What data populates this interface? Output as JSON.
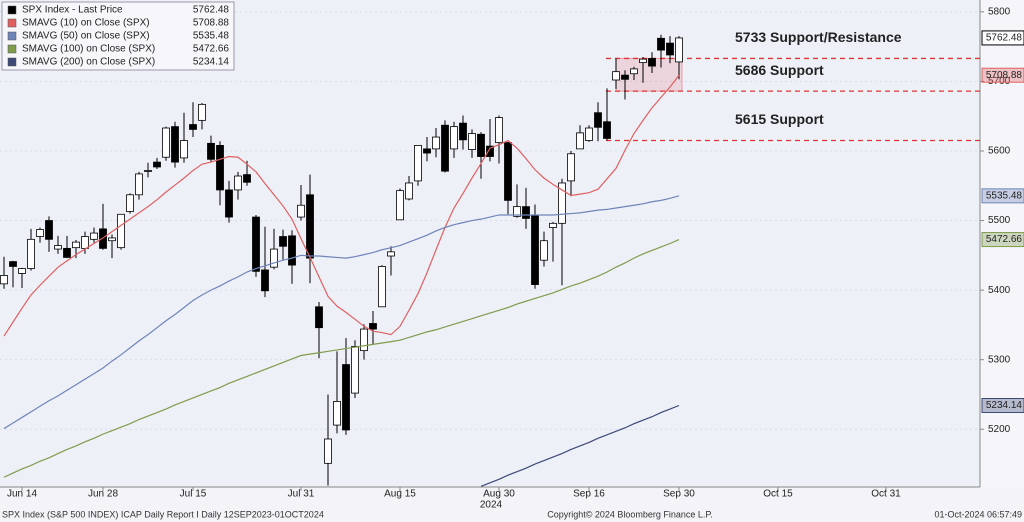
{
  "chart_data": {
    "type": "candlestick",
    "ylim": [
      5117,
      5817
    ],
    "yticks": [
      5200,
      5300,
      5400,
      5500,
      5600,
      5700,
      5800
    ],
    "grid": true,
    "categories": [
      null,
      null,
      "Jun 14",
      null,
      null,
      null,
      null,
      null,
      null,
      null,
      null,
      "Jun 28",
      null,
      null,
      null,
      null,
      null,
      null,
      null,
      null,
      null,
      "Jul 15",
      null,
      null,
      null,
      null,
      null,
      null,
      null,
      null,
      null,
      null,
      null,
      "Jul 31",
      null,
      null,
      null,
      null,
      null,
      null,
      null,
      null,
      null,
      null,
      "Aug 15",
      null,
      null,
      null,
      null,
      null,
      null,
      null,
      null,
      null,
      null,
      "Aug 30",
      null,
      null,
      null,
      null,
      null,
      null,
      null,
      null,
      null,
      "Sep 16",
      null,
      null,
      null,
      null,
      null,
      null,
      null,
      null,
      null,
      "Sep 30",
      null,
      null,
      null,
      null,
      null,
      null,
      null,
      null,
      null,
      null,
      "Oct 15",
      null,
      null,
      null,
      null,
      null,
      null,
      null,
      null,
      null,
      null,
      null,
      "Oct 31",
      null,
      null,
      null,
      null,
      null,
      null,
      null,
      null,
      null,
      null
    ],
    "year_label": "2024",
    "ohlc": {
      "name": "SPX Index - Last Price",
      "color": "#000000",
      "open": [
        5409,
        5441,
        5424,
        5431,
        5477,
        5500,
        5459,
        5460,
        5461,
        5460,
        5473,
        5488,
        5471,
        5461,
        5513,
        5537,
        5572,
        5584,
        5591,
        5635,
        5590,
        5638,
        5644,
        5611,
        5608,
        5544,
        5544,
        5566,
        5505,
        5429,
        5433,
        5477,
        5478,
        5505,
        5537,
        5376,
        5151,
        5206,
        5293,
        5252,
        5313,
        5352,
        5376,
        5449,
        5501,
        5531,
        5557,
        5603,
        5603,
        5637,
        5603,
        5640,
        5602,
        5624,
        5607,
        5612,
        5612,
        5506,
        5520,
        5507,
        5443,
        5490,
        5496,
        5557,
        5603,
        5615,
        5655,
        5642,
        5702,
        5709,
        5711,
        5727,
        5733,
        5762,
        5755,
        5728,
        null,
        null,
        null,
        null,
        null,
        null,
        null,
        null,
        null,
        null,
        null,
        null,
        null,
        null,
        null,
        null,
        null,
        null,
        null,
        null,
        null,
        null,
        null,
        null,
        null,
        null,
        null,
        null,
        null,
        null,
        null,
        null,
        null
      ],
      "high": [
        5448,
        5442,
        5432,
        5488,
        5490,
        5506,
        5478,
        5478,
        5472,
        5484,
        5490,
        5524,
        5480,
        5509,
        5539,
        5570,
        5583,
        5590,
        5635,
        5642,
        5655,
        5670,
        5669,
        5622,
        5614,
        5557,
        5570,
        5586,
        5508,
        5491,
        5488,
        5487,
        5486,
        5551,
        5566,
        5383,
        5250,
        5312,
        5331,
        5328,
        5351,
        5370,
        5436,
        5463,
        5546,
        5564,
        5608,
        5620,
        5633,
        5644,
        5642,
        5651,
        5631,
        5627,
        5646,
        5651,
        5613,
        5552,
        5547,
        5523,
        5484,
        5498,
        5560,
        5600,
        5637,
        5637,
        5670,
        5690,
        5733,
        5716,
        5721,
        5735,
        5742,
        5767,
        5765,
        5765,
        null,
        null,
        null,
        null,
        null,
        null,
        null,
        null,
        null,
        null,
        null,
        null,
        null,
        null,
        null,
        null,
        null,
        null,
        null,
        null,
        null,
        null,
        null,
        null,
        null,
        null,
        null,
        null,
        null,
        null,
        null,
        null,
        null
      ],
      "low": [
        5402,
        5404,
        5403,
        5428,
        5468,
        5455,
        5452,
        5446,
        5446,
        5452,
        5468,
        5458,
        5446,
        5458,
        5510,
        5530,
        5562,
        5574,
        5586,
        5576,
        5583,
        5620,
        5631,
        5584,
        5522,
        5497,
        5530,
        5550,
        5419,
        5390,
        5430,
        5444,
        5409,
        5500,
        5410,
        5302,
        5119,
        5194,
        5192,
        5245,
        5300,
        5322,
        5376,
        5421,
        5501,
        5529,
        5550,
        5585,
        5591,
        5569,
        5590,
        5602,
        5590,
        5560,
        5585,
        5582,
        5509,
        5504,
        5488,
        5402,
        5434,
        5441,
        5407,
        5535,
        5603,
        5613,
        5614,
        5615,
        5689,
        5674,
        5702,
        5698,
        5712,
        5720,
        5726,
        5703,
        null,
        null,
        null,
        null,
        null,
        null,
        null,
        null,
        null,
        null,
        null,
        null,
        null,
        null,
        null,
        null,
        null,
        null,
        null,
        null,
        null,
        null,
        null,
        null,
        null,
        null,
        null,
        null,
        null,
        null,
        null,
        null,
        null
      ],
      "close": [
        5421,
        5434,
        5431,
        5473,
        5487,
        5473,
        5464,
        5447,
        5469,
        5477,
        5482,
        5460,
        5475,
        5509,
        5537,
        5567,
        5572,
        5577,
        5633,
        5584,
        5615,
        5631,
        5667,
        5588,
        5544,
        5505,
        5564,
        5555,
        5427,
        5399,
        5459,
        5463,
        5436,
        5522,
        5446,
        5346,
        5186,
        5240,
        5199,
        5319,
        5344,
        5344,
        5434,
        5455,
        5543,
        5554,
        5608,
        5597,
        5620,
        5571,
        5635,
        5616,
        5625,
        5592,
        5592,
        5648,
        5529,
        5520,
        5503,
        5408,
        5471,
        5496,
        5554,
        5596,
        5626,
        5633,
        5634,
        5618,
        5714,
        5703,
        5718,
        5732,
        5722,
        5745,
        5738,
        5762.48,
        null,
        null,
        null,
        null,
        null,
        null,
        null,
        null,
        null,
        null,
        null,
        null,
        null,
        null,
        null,
        null,
        null,
        null,
        null,
        null,
        null,
        null,
        null,
        null,
        null,
        null,
        null,
        null,
        null,
        null,
        null,
        null,
        null
      ]
    },
    "series": [
      {
        "name": "SMAVG (10)  on Close (SPX)",
        "color": "#e06060",
        "values": [
          5334,
          5354,
          5374,
          5393,
          5407,
          5420,
          5433,
          5442,
          5451,
          5459,
          5467,
          5475,
          5484,
          5493,
          5502,
          5511,
          5520,
          5530,
          5541,
          5551,
          5561,
          5572,
          5581,
          5584,
          5588,
          5592,
          5591,
          5581,
          5570,
          5553,
          5537,
          5521,
          5502,
          5474,
          5447,
          5419,
          5391,
          5377,
          5368,
          5358,
          5348,
          5341,
          5339,
          5336,
          5348,
          5371,
          5395,
          5425,
          5458,
          5490,
          5518,
          5539,
          5561,
          5582,
          5604,
          5609,
          5615,
          5604,
          5589,
          5573,
          5561,
          5552,
          5544,
          5536,
          5538,
          5540,
          5545,
          5560,
          5575,
          5601,
          5625,
          5644,
          5662,
          5677,
          5692,
          5708.88,
          null,
          null,
          null,
          null,
          null,
          null,
          null,
          null,
          null,
          null,
          null,
          null,
          null,
          null,
          null,
          null,
          null,
          null,
          null,
          null,
          null,
          null,
          null,
          null,
          null,
          null,
          null,
          null,
          null,
          null,
          null,
          null,
          null
        ]
      },
      {
        "name": "SMAVG (50)  on Close (SPX)",
        "color": "#6f84b8",
        "values": [
          5201,
          5209,
          5217,
          5225,
          5233,
          5241,
          5248,
          5256,
          5264,
          5272,
          5280,
          5288,
          5298,
          5307,
          5317,
          5327,
          5336,
          5346,
          5356,
          5365,
          5375,
          5385,
          5393,
          5400,
          5406,
          5413,
          5419,
          5426,
          5431,
          5435,
          5439,
          5443,
          5446,
          5450,
          5449,
          5449,
          5448,
          5447,
          5446,
          5448,
          5451,
          5454,
          5458,
          5461,
          5464,
          5469,
          5474,
          5479,
          5485,
          5490,
          5494,
          5497,
          5500,
          5502,
          5505,
          5508,
          5508,
          5508,
          5508,
          5508,
          5508,
          5508,
          5509,
          5510,
          5511,
          5513,
          5515,
          5516,
          5518,
          5520,
          5522,
          5524,
          5527,
          5529,
          5532,
          5535.48,
          null,
          null,
          null,
          null,
          null,
          null,
          null,
          null,
          null,
          null,
          null,
          null,
          null,
          null,
          null,
          null,
          null,
          null,
          null,
          null,
          null,
          null,
          null,
          null,
          null,
          null,
          null,
          null,
          null,
          null,
          null,
          null,
          null
        ]
      },
      {
        "name": "SMAVG (100)  on Close (SPX)",
        "color": "#7f9c4c",
        "values": [
          5131,
          5137,
          5143,
          5148,
          5154,
          5159,
          5165,
          5171,
          5176,
          5182,
          5187,
          5193,
          5198,
          5203,
          5208,
          5214,
          5219,
          5224,
          5229,
          5235,
          5240,
          5245,
          5250,
          5255,
          5260,
          5266,
          5271,
          5276,
          5281,
          5286,
          5291,
          5296,
          5301,
          5306,
          5308,
          5310,
          5312,
          5314,
          5316,
          5318,
          5320,
          5322,
          5324,
          5326,
          5328,
          5332,
          5336,
          5340,
          5343,
          5347,
          5351,
          5355,
          5359,
          5363,
          5367,
          5371,
          5375,
          5380,
          5384,
          5388,
          5392,
          5396,
          5401,
          5406,
          5410,
          5415,
          5420,
          5426,
          5433,
          5439,
          5446,
          5452,
          5457,
          5462,
          5467,
          5472.66,
          null,
          null,
          null,
          null,
          null,
          null,
          null,
          null,
          null,
          null,
          null,
          null,
          null,
          null,
          null,
          null,
          null,
          null,
          null,
          null,
          null,
          null,
          null,
          null,
          null,
          null,
          null,
          null,
          null,
          null,
          null,
          null,
          null
        ]
      },
      {
        "name": "SMAVG (200)  on Close (SPX)",
        "color": "#3d4a78",
        "values": [
          null,
          null,
          null,
          null,
          null,
          null,
          null,
          null,
          null,
          null,
          null,
          null,
          null,
          null,
          null,
          null,
          null,
          null,
          null,
          null,
          null,
          null,
          null,
          null,
          null,
          null,
          null,
          null,
          null,
          null,
          null,
          null,
          null,
          null,
          null,
          null,
          null,
          null,
          null,
          null,
          null,
          null,
          null,
          null,
          null,
          null,
          null,
          null,
          null,
          null,
          null,
          null,
          null,
          5118,
          5123,
          5128,
          5134,
          5139,
          5144,
          5150,
          5155,
          5160,
          5165,
          5171,
          5176,
          5181,
          5187,
          5192,
          5197,
          5202,
          5208,
          5213,
          5218,
          5224,
          5229,
          5234.14,
          null,
          null,
          null,
          null,
          null,
          null,
          null,
          null,
          null,
          null,
          null,
          null,
          null,
          null,
          null,
          null,
          null,
          null,
          null,
          null,
          null,
          null,
          null,
          null,
          null,
          null,
          null,
          null,
          null,
          null,
          null,
          null,
          null
        ]
      }
    ],
    "annotations": [
      {
        "label": "5733 Support/Resistance",
        "value": 5733
      },
      {
        "label": "5686 Support",
        "value": 5686
      },
      {
        "label": "5615 Support",
        "value": 5615
      }
    ],
    "annotation_color": "#e03434",
    "footer": {
      "left": "SPX Index (S&P 500 INDEX) ICAP Daily Report I  Daily 12SEP2023-01OCT2024",
      "center": "Copyright© 2024 Bloomberg Finance L.P.",
      "right": "01-Oct-2024 06:57:49"
    }
  }
}
